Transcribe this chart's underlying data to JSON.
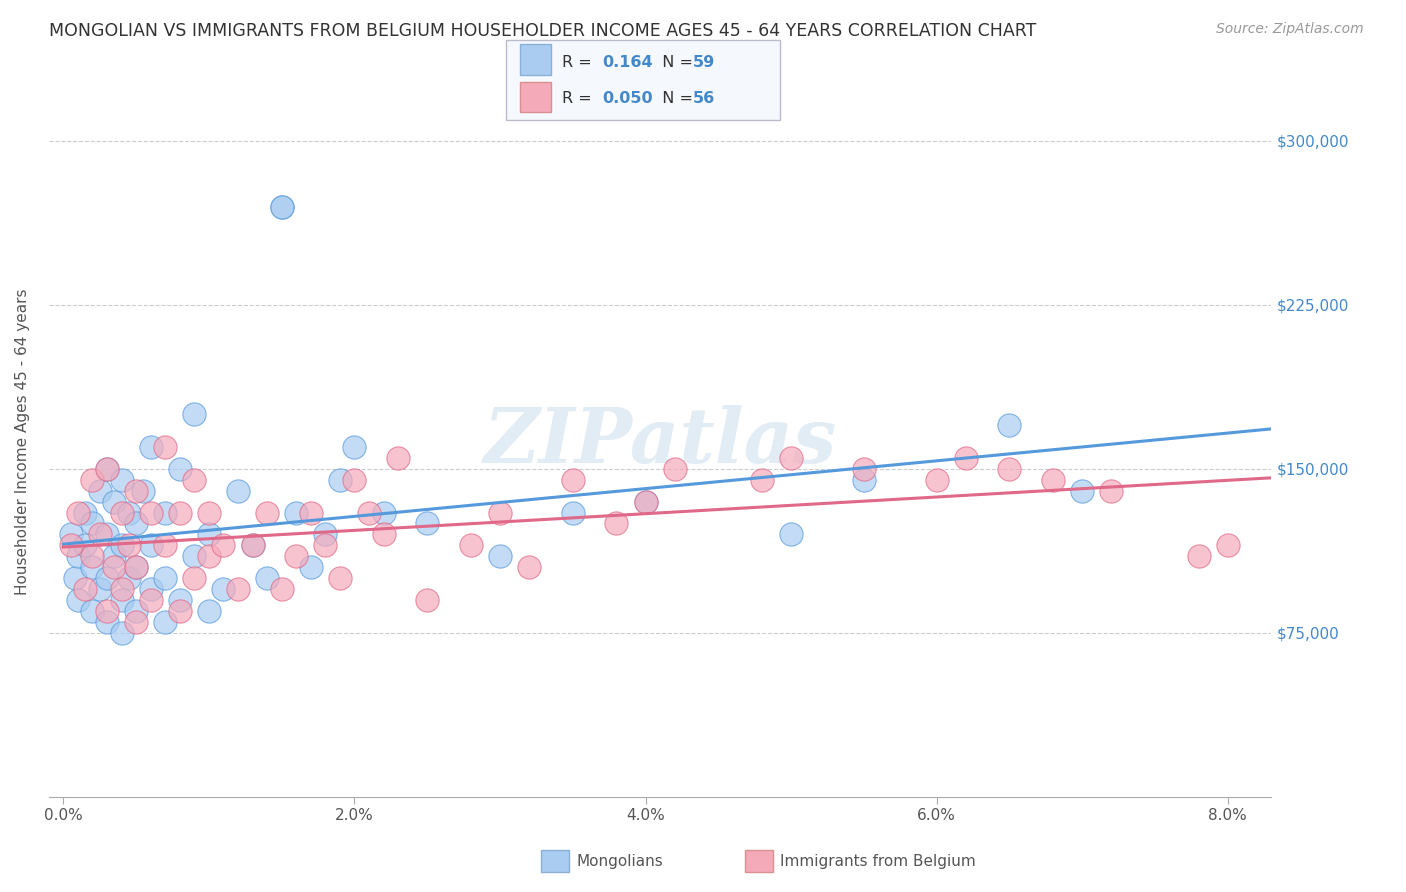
{
  "title": "MONGOLIAN VS IMMIGRANTS FROM BELGIUM HOUSEHOLDER INCOME AGES 45 - 64 YEARS CORRELATION CHART",
  "source": "Source: ZipAtlas.com",
  "ylabel": "Householder Income Ages 45 - 64 years",
  "xlabel_ticks": [
    "0.0%",
    "2.0%",
    "4.0%",
    "6.0%",
    "8.0%"
  ],
  "xlabel_vals": [
    0.0,
    0.02,
    0.04,
    0.06,
    0.08
  ],
  "ytick_labels": [
    "$75,000",
    "$150,000",
    "$225,000",
    "$300,000"
  ],
  "ytick_vals": [
    75000,
    150000,
    225000,
    300000
  ],
  "ylim": [
    0,
    325000
  ],
  "xlim": [
    -0.001,
    0.083
  ],
  "mongolian_R": "0.164",
  "mongolian_N": "59",
  "belgium_R": "0.050",
  "belgium_N": "56",
  "mongolian_color": "#aaccf0",
  "belgium_color": "#f5aaba",
  "mongolian_line_color": "#5599dd",
  "belgium_line_color": "#e06888",
  "watermark": "ZIPatlas",
  "mongolian_x": [
    0.0005,
    0.0008,
    0.001,
    0.001,
    0.0015,
    0.0015,
    0.002,
    0.002,
    0.002,
    0.0025,
    0.0025,
    0.003,
    0.003,
    0.003,
    0.003,
    0.0035,
    0.0035,
    0.004,
    0.004,
    0.004,
    0.004,
    0.0045,
    0.0045,
    0.005,
    0.005,
    0.005,
    0.0055,
    0.006,
    0.006,
    0.006,
    0.007,
    0.007,
    0.007,
    0.008,
    0.008,
    0.009,
    0.009,
    0.01,
    0.01,
    0.011,
    0.012,
    0.013,
    0.014,
    0.015,
    0.015,
    0.016,
    0.017,
    0.018,
    0.019,
    0.02,
    0.022,
    0.025,
    0.03,
    0.035,
    0.04,
    0.05,
    0.055,
    0.065,
    0.07
  ],
  "mongolian_y": [
    120000,
    100000,
    110000,
    90000,
    130000,
    115000,
    85000,
    105000,
    125000,
    95000,
    140000,
    80000,
    100000,
    120000,
    150000,
    110000,
    135000,
    75000,
    90000,
    115000,
    145000,
    100000,
    130000,
    85000,
    105000,
    125000,
    140000,
    95000,
    115000,
    160000,
    80000,
    100000,
    130000,
    90000,
    150000,
    110000,
    175000,
    85000,
    120000,
    95000,
    140000,
    115000,
    100000,
    270000,
    270000,
    130000,
    105000,
    120000,
    145000,
    160000,
    130000,
    125000,
    110000,
    130000,
    135000,
    120000,
    145000,
    170000,
    140000
  ],
  "belgium_x": [
    0.0005,
    0.001,
    0.0015,
    0.002,
    0.002,
    0.0025,
    0.003,
    0.003,
    0.0035,
    0.004,
    0.004,
    0.0045,
    0.005,
    0.005,
    0.005,
    0.006,
    0.006,
    0.007,
    0.007,
    0.008,
    0.008,
    0.009,
    0.009,
    0.01,
    0.01,
    0.011,
    0.012,
    0.013,
    0.014,
    0.015,
    0.016,
    0.017,
    0.018,
    0.019,
    0.02,
    0.021,
    0.022,
    0.023,
    0.025,
    0.028,
    0.03,
    0.032,
    0.035,
    0.038,
    0.04,
    0.042,
    0.048,
    0.05,
    0.055,
    0.06,
    0.062,
    0.065,
    0.068,
    0.072,
    0.078,
    0.08
  ],
  "belgium_y": [
    115000,
    130000,
    95000,
    110000,
    145000,
    120000,
    85000,
    150000,
    105000,
    130000,
    95000,
    115000,
    80000,
    140000,
    105000,
    130000,
    90000,
    115000,
    160000,
    85000,
    130000,
    100000,
    145000,
    110000,
    130000,
    115000,
    95000,
    115000,
    130000,
    95000,
    110000,
    130000,
    115000,
    100000,
    145000,
    130000,
    120000,
    155000,
    90000,
    115000,
    130000,
    105000,
    145000,
    125000,
    135000,
    150000,
    145000,
    155000,
    150000,
    145000,
    155000,
    150000,
    145000,
    140000,
    110000,
    115000
  ]
}
